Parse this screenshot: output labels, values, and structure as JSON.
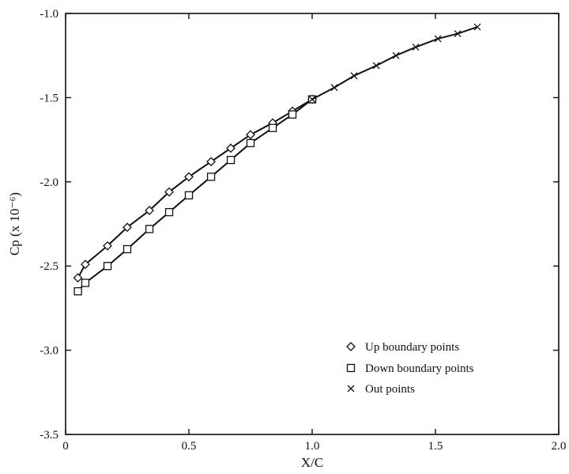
{
  "chart_data": {
    "type": "line",
    "xlabel": "X/C",
    "ylabel": "Cp (x 10⁻⁶)",
    "xlim": [
      0,
      2.0
    ],
    "ylim": [
      -3.5,
      -1.0
    ],
    "xticks": [
      0,
      0.5,
      1.0,
      1.5,
      2.0
    ],
    "xtick_labels": [
      "0",
      "0.5",
      "1.0",
      "1.5",
      "2.0"
    ],
    "yticks": [
      -1.0,
      -1.5,
      -2.0,
      -2.5,
      -3.0,
      -3.5
    ],
    "ytick_labels": [
      "-1.0",
      "-1.5",
      "-2.0",
      "-2.5",
      "-3.0",
      "-3.5"
    ],
    "grid": false,
    "legend_position": "bottom-right",
    "series": [
      {
        "name": "Up boundary points",
        "marker": "diamond",
        "color": "#111111",
        "x": [
          0.05,
          0.08,
          0.17,
          0.25,
          0.34,
          0.42,
          0.5,
          0.59,
          0.67,
          0.75,
          0.84,
          0.92,
          1.0
        ],
        "y": [
          -2.57,
          -2.49,
          -2.38,
          -2.27,
          -2.17,
          -2.06,
          -1.97,
          -1.88,
          -1.8,
          -1.72,
          -1.65,
          -1.58,
          -1.51
        ]
      },
      {
        "name": "Down boundary points",
        "marker": "square",
        "color": "#111111",
        "x": [
          0.05,
          0.08,
          0.17,
          0.25,
          0.34,
          0.42,
          0.5,
          0.59,
          0.67,
          0.75,
          0.84,
          0.92,
          1.0
        ],
        "y": [
          -2.65,
          -2.6,
          -2.5,
          -2.4,
          -2.28,
          -2.18,
          -2.08,
          -1.97,
          -1.87,
          -1.77,
          -1.68,
          -1.6,
          -1.51
        ]
      },
      {
        "name": "Out points",
        "marker": "cross",
        "color": "#111111",
        "x": [
          1.0,
          1.09,
          1.17,
          1.26,
          1.34,
          1.42,
          1.51,
          1.59,
          1.67
        ],
        "y": [
          -1.51,
          -1.44,
          -1.37,
          -1.31,
          -1.25,
          -1.2,
          -1.15,
          -1.12,
          -1.08
        ]
      }
    ]
  }
}
